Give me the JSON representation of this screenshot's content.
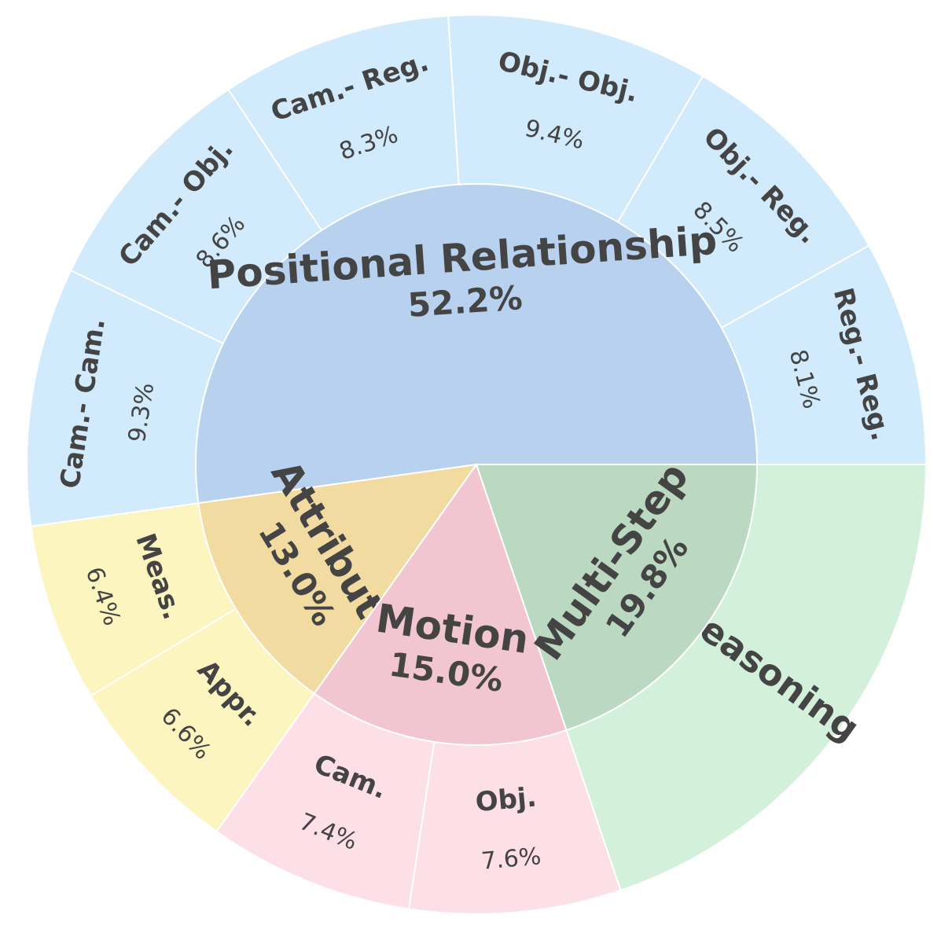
{
  "chart_data": {
    "type": "sunburst",
    "title": "",
    "colors": {
      "Positional Relationship": {
        "inner": "#b7d1ee",
        "outer": "#d1eafc"
      },
      "Multi-Step": {
        "inner": "#bbd9c1",
        "outer": "#d3f1da"
      },
      "Motion": {
        "inner": "#f1c6d0",
        "outer": "#fde0e7"
      },
      "Attribute": {
        "inner": "#f2dba0",
        "outer": "#fdf5c0"
      },
      "stroke": "#ffffff",
      "text": "#444444"
    },
    "categories": [
      {
        "name": "Positional Relationship",
        "percent": "52.2%",
        "value": 52.2,
        "children": [
          {
            "name": "Reg.- Reg.",
            "percent": "8.1%",
            "value": 8.1
          },
          {
            "name": "Obj.- Reg.",
            "percent": "8.5%",
            "value": 8.5
          },
          {
            "name": "Obj.- Obj.",
            "percent": "9.4%",
            "value": 9.4
          },
          {
            "name": "Cam.- Reg.",
            "percent": "8.3%",
            "value": 8.3
          },
          {
            "name": "Cam.- Obj.",
            "percent": "8.6%",
            "value": 8.6
          },
          {
            "name": "Cam.- Cam.",
            "percent": "9.3%",
            "value": 9.3
          }
        ]
      },
      {
        "name": "Attribute",
        "percent": "13.0%",
        "value": 13.0,
        "children": [
          {
            "name": "Meas.",
            "percent": "6.4%",
            "value": 6.4
          },
          {
            "name": "Appr.",
            "percent": "6.6%",
            "value": 6.6
          }
        ]
      },
      {
        "name": "Motion",
        "percent": "15.0%",
        "value": 15.0,
        "children": [
          {
            "name": "Cam.",
            "percent": "7.4%",
            "value": 7.4
          },
          {
            "name": "Obj.",
            "percent": "7.6%",
            "value": 7.6
          }
        ]
      },
      {
        "name": "Multi-Step",
        "percent": "19.8%",
        "value": 19.8,
        "children": [
          {
            "name": "Reasoning",
            "percent": "",
            "value": 19.8
          }
        ]
      }
    ]
  }
}
